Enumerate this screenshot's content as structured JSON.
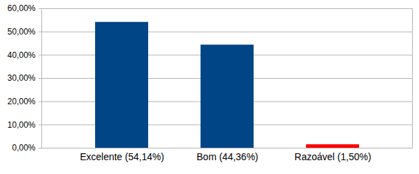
{
  "chart_data": {
    "type": "bar",
    "categories": [
      "Excelente (54,14%)",
      "Bom (44,36%)",
      "Razoável (1,50%)"
    ],
    "values": [
      54.14,
      44.36,
      1.5
    ],
    "colors": [
      "#004586",
      "#004586",
      "#ff0000"
    ],
    "ylim": [
      0,
      60
    ],
    "yticks": [
      {
        "value": 0,
        "label": "0,00%"
      },
      {
        "value": 10,
        "label": "10,00%"
      },
      {
        "value": 20,
        "label": "20,00%"
      },
      {
        "value": 30,
        "label": "30,00%"
      },
      {
        "value": 40,
        "label": "40,00%"
      },
      {
        "value": 50,
        "label": "50,00%"
      },
      {
        "value": 60,
        "label": "60,00%"
      }
    ],
    "grid": true
  }
}
